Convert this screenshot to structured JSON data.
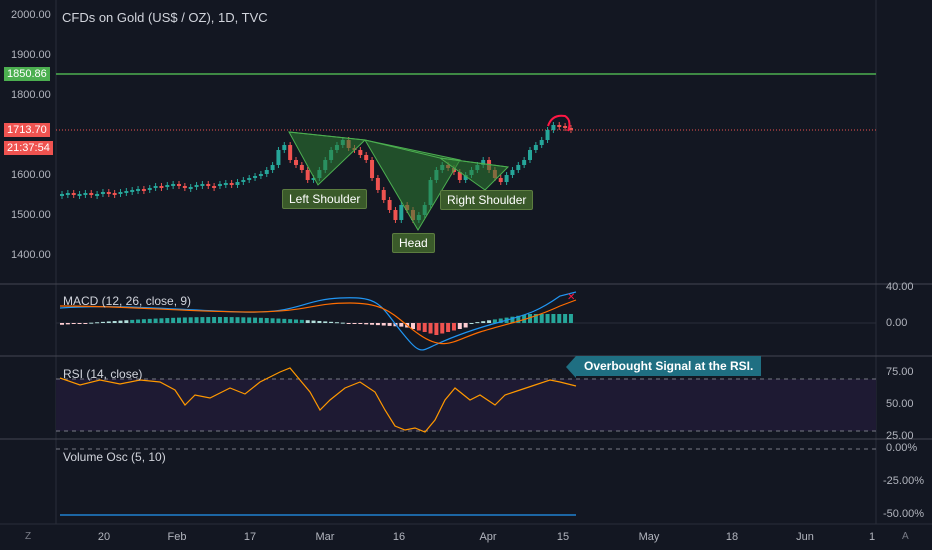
{
  "chart_title": "CFDs on Gold (US$ / OZ), 1D, TVC",
  "left_scale": {
    "ticks": [
      "2000.00",
      "1900.00",
      "1800.00",
      "1600.00",
      "1500.00",
      "1400.00"
    ],
    "green_line_value": "1850.86",
    "price_value": "1713.70",
    "countdown": "21:37:54"
  },
  "annotations": {
    "left_shoulder": "Left Shoulder",
    "head": "Head",
    "right_shoulder": "Right Shoulder",
    "rsi_callout": "Overbought Signal at the RSI."
  },
  "indicators": {
    "macd": {
      "title": "MACD (12, 26, close, 9)",
      "ticks": [
        "40.00",
        "0.00"
      ]
    },
    "rsi": {
      "title": "RSI (14, close)",
      "ticks": [
        "75.00",
        "50.00",
        "25.00"
      ]
    },
    "volume_osc": {
      "title": "Volume Osc (5, 10)",
      "ticks": [
        "0.00%",
        "-25.00%",
        "-50.00%"
      ]
    }
  },
  "x_axis": {
    "labels": [
      "20",
      "Feb",
      "17",
      "Mar",
      "16",
      "Apr",
      "15",
      "May",
      "18",
      "Jun",
      "1"
    ]
  },
  "footer": {
    "left": "Z",
    "right": "A"
  },
  "colors": {
    "background": "#131722",
    "up": "#26a69a",
    "down": "#ef5350",
    "green_line": "#4caf50",
    "price_line": "#ef5350",
    "macd_line": "#2196f3",
    "signal_line": "#ff6d00",
    "rsi_line": "#ff9800",
    "rsi_fill": "#1e1a33",
    "pattern_fill": "#2e7d32"
  }
}
